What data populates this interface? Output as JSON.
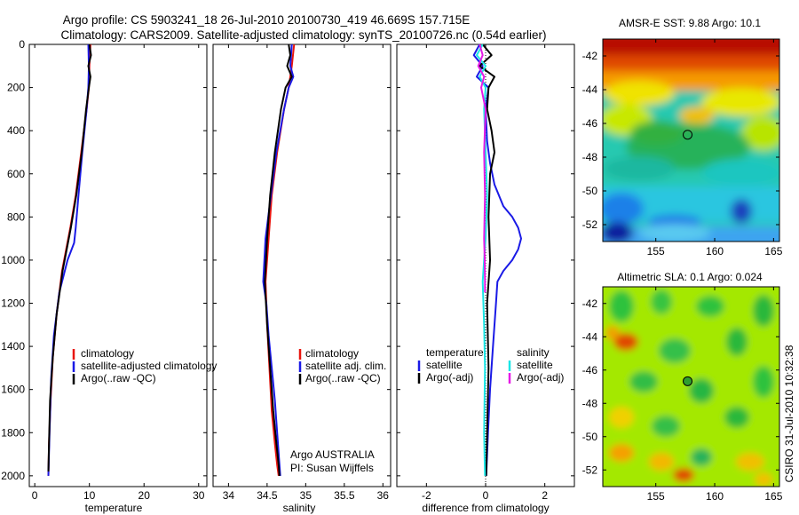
{
  "figure": {
    "title_line1": "Argo profile: CS 5903241_18 26-Jul-2010 20100730_419 46.669S 157.715E",
    "title_line2": "Climatology: CARS2009. Satellite-adjusted climatology: synTS_20100726.nc (0.54d earlier)",
    "float_note_line1": "Argo AUSTRALIA",
    "float_note_line2": "PI: Susan Wijffels",
    "side_label": "CSIRO 31-Jul-2010 10:32:38"
  },
  "colors": {
    "climatology": "#e8150e",
    "satellite": "#1a1ae6",
    "argo": "#000000",
    "salinity_satellite": "#1ae6e6",
    "salinity_argo": "#e61ae6"
  },
  "chart_data": [
    {
      "type": "line",
      "id": "temperature",
      "xlabel": "temperature",
      "ylabel": "",
      "xlim": [
        -1,
        31.5
      ],
      "ylim": [
        2050,
        0
      ],
      "xticks": [
        0,
        10,
        20,
        30
      ],
      "yticks": [
        0,
        200,
        400,
        600,
        800,
        1000,
        1200,
        1400,
        1600,
        1800,
        2000
      ],
      "legend": [
        "climatology",
        "satellite-adjusted climatology",
        "Argo(..raw -QC)"
      ],
      "series": [
        {
          "name": "climatology",
          "color_key": "climatology",
          "x": [
            10.2,
            10.0,
            9.9,
            9.5,
            8.5,
            7.5,
            6.5,
            5.0,
            4.0,
            3.3,
            2.9,
            2.6,
            2.5
          ],
          "y": [
            0,
            100,
            200,
            300,
            500,
            700,
            850,
            1050,
            1250,
            1450,
            1650,
            1850,
            2000
          ]
        },
        {
          "name": "satellite-adjusted climatology",
          "color_key": "satellite",
          "x": [
            9.8,
            9.9,
            9.8,
            9.5,
            8.7,
            8.0,
            7.5,
            7.2,
            6.0,
            4.5,
            3.5,
            3.0,
            2.7,
            2.5
          ],
          "y": [
            0,
            100,
            200,
            300,
            500,
            700,
            850,
            920,
            1000,
            1150,
            1350,
            1550,
            1800,
            2000
          ]
        },
        {
          "name": "Argo(..raw -QC)",
          "color_key": "argo",
          "x": [
            10.0,
            10.3,
            9.8,
            10.2,
            9.9,
            9.4,
            8.6,
            7.6,
            6.6,
            5.1,
            4.0,
            3.3,
            2.8,
            2.6,
            2.5
          ],
          "y": [
            0,
            50,
            100,
            150,
            200,
            300,
            500,
            700,
            850,
            1050,
            1250,
            1450,
            1650,
            1850,
            1980
          ]
        }
      ]
    },
    {
      "type": "line",
      "id": "salinity",
      "xlabel": "salinity",
      "ylabel": "",
      "xlim": [
        33.8,
        36.1
      ],
      "ylim": [
        2050,
        0
      ],
      "xticks": [
        34,
        34.5,
        35,
        35.5,
        36
      ],
      "xticklabels": [
        "34",
        "34.5",
        "35",
        "35.5",
        "36"
      ],
      "legend": [
        "climatology",
        "satellite adj. clim.",
        "Argo(..raw -QC)"
      ],
      "series": [
        {
          "name": "climatology",
          "color_key": "climatology",
          "x": [
            34.85,
            34.82,
            34.78,
            34.72,
            34.63,
            34.56,
            34.52,
            34.48,
            34.5,
            34.53,
            34.56,
            34.6,
            34.63,
            34.65
          ],
          "y": [
            0,
            100,
            200,
            300,
            500,
            700,
            900,
            1100,
            1300,
            1500,
            1700,
            1850,
            1950,
            2000
          ]
        },
        {
          "name": "satellite adj. clim.",
          "color_key": "satellite",
          "x": [
            34.82,
            34.8,
            34.84,
            34.78,
            34.72,
            34.62,
            34.55,
            34.48,
            34.45,
            34.49,
            34.52,
            34.56,
            34.6,
            34.63,
            34.66,
            34.67
          ],
          "y": [
            0,
            100,
            150,
            200,
            300,
            500,
            700,
            900,
            1100,
            1200,
            1350,
            1500,
            1650,
            1800,
            1950,
            2000
          ]
        },
        {
          "name": "Argo(..raw -QC)",
          "color_key": "argo",
          "x": [
            34.78,
            34.8,
            34.76,
            34.82,
            34.74,
            34.68,
            34.6,
            34.54,
            34.5,
            34.47,
            34.5,
            34.54,
            34.58,
            34.62,
            34.65,
            34.66
          ],
          "y": [
            0,
            50,
            100,
            150,
            200,
            300,
            500,
            700,
            900,
            1100,
            1300,
            1500,
            1700,
            1850,
            1950,
            2000
          ]
        }
      ]
    },
    {
      "type": "line",
      "id": "difference",
      "xlabel": "difference from climatology",
      "ylabel": "",
      "xlim": [
        -3,
        3
      ],
      "ylim": [
        2050,
        0
      ],
      "xticks": [
        -2,
        0,
        2
      ],
      "legend_left_title": "temperature",
      "legend_right_title": "salinity",
      "legend_left": [
        "satellite",
        "Argo(-adj)"
      ],
      "legend_right": [
        "satellite",
        "Argo(-adj)"
      ],
      "series": [
        {
          "name": "satellite",
          "group": "temperature",
          "color_key": "satellite",
          "x": [
            -0.2,
            -0.4,
            -0.1,
            -0.3,
            0.1,
            0.0,
            0.05,
            0.15,
            0.3,
            0.6,
            0.9,
            1.1,
            1.2,
            1.1,
            0.9,
            0.6,
            0.4,
            0.35,
            0.25,
            0.15,
            0.08,
            0.02
          ],
          "y": [
            0,
            50,
            100,
            150,
            200,
            300,
            450,
            550,
            650,
            750,
            800,
            850,
            900,
            950,
            1000,
            1050,
            1100,
            1200,
            1400,
            1600,
            1800,
            2000
          ]
        },
        {
          "name": "Argo(-adj)",
          "group": "temperature",
          "color_key": "argo",
          "x": [
            -0.1,
            0.2,
            -0.2,
            0.3,
            0.1,
            0.05,
            0.2,
            0.3,
            0.15,
            0.1,
            0.15,
            0.05,
            0.1,
            0.05,
            0.02
          ],
          "y": [
            0,
            50,
            100,
            150,
            200,
            300,
            400,
            500,
            600,
            800,
            1000,
            1200,
            1500,
            1800,
            2000
          ]
        },
        {
          "name": "satellite",
          "group": "salinity",
          "color_key": "salinity_satellite",
          "x": [
            -0.1,
            -0.3,
            0.0,
            -0.2,
            0.0,
            -0.05,
            0.0,
            0.05,
            0.0,
            -0.05,
            -0.1,
            -0.05,
            -0.02,
            -0.05,
            -0.02
          ],
          "y": [
            0,
            50,
            100,
            150,
            200,
            300,
            500,
            700,
            900,
            1000,
            1100,
            1300,
            1500,
            1800,
            2000
          ]
        },
        {
          "name": "Argo(-adj)",
          "group": "salinity",
          "color_key": "salinity_argo",
          "x": [
            -0.2,
            -0.1,
            -0.25,
            -0.05,
            -0.15,
            0.0,
            -0.05,
            -0.02,
            -0.05,
            -0.03,
            -0.02,
            -0.02
          ],
          "y": [
            0,
            50,
            100,
            150,
            200,
            300,
            500,
            700,
            900,
            1000,
            1100,
            1150
          ]
        }
      ]
    },
    {
      "type": "heatmap",
      "id": "sst_map",
      "title": "AMSR-E SST: 9.88 Argo: 10.1",
      "xlim": [
        150.5,
        165.5
      ],
      "ylim": [
        -53,
        -41
      ],
      "xticks": [
        155,
        160,
        165
      ],
      "yticks": [
        -42,
        -44,
        -46,
        -48,
        -50,
        -52
      ],
      "marker": {
        "lon": 157.7,
        "lat": -46.67,
        "fill": "none"
      }
    },
    {
      "type": "heatmap",
      "id": "sla_map",
      "title": "Altimetric SLA: 0.1 Argo: 0.024",
      "xlim": [
        150.5,
        165.5
      ],
      "ylim": [
        -53,
        -41
      ],
      "xticks": [
        155,
        160,
        165
      ],
      "yticks": [
        -42,
        -44,
        -46,
        -48,
        -50,
        -52
      ],
      "marker": {
        "lon": 157.7,
        "lat": -46.67,
        "fill": "#2e9e2e"
      }
    }
  ]
}
